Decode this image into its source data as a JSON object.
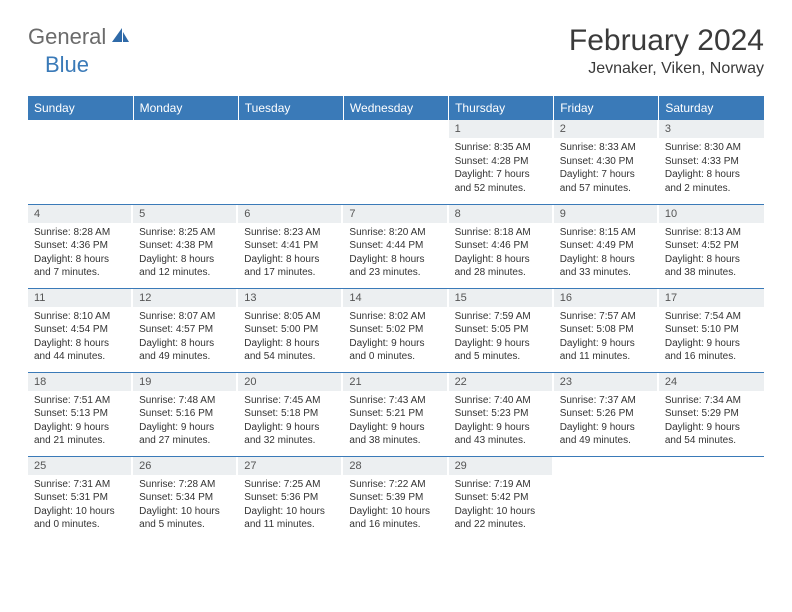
{
  "logo": {
    "general": "General",
    "blue": "Blue"
  },
  "title": "February 2024",
  "location": "Jevnaker, Viken, Norway",
  "colors": {
    "header_bg": "#3a7ab8",
    "header_text": "#ffffff",
    "daynum_bg": "#eceff1",
    "border": "#3a7ab8",
    "logo_gray": "#6b6b6b",
    "logo_blue": "#3a7ab8"
  },
  "weekdays": [
    "Sunday",
    "Monday",
    "Tuesday",
    "Wednesday",
    "Thursday",
    "Friday",
    "Saturday"
  ],
  "weeks": [
    [
      null,
      null,
      null,
      null,
      {
        "n": "1",
        "sr": "Sunrise: 8:35 AM",
        "ss": "Sunset: 4:28 PM",
        "dl": "Daylight: 7 hours and 52 minutes."
      },
      {
        "n": "2",
        "sr": "Sunrise: 8:33 AM",
        "ss": "Sunset: 4:30 PM",
        "dl": "Daylight: 7 hours and 57 minutes."
      },
      {
        "n": "3",
        "sr": "Sunrise: 8:30 AM",
        "ss": "Sunset: 4:33 PM",
        "dl": "Daylight: 8 hours and 2 minutes."
      }
    ],
    [
      {
        "n": "4",
        "sr": "Sunrise: 8:28 AM",
        "ss": "Sunset: 4:36 PM",
        "dl": "Daylight: 8 hours and 7 minutes."
      },
      {
        "n": "5",
        "sr": "Sunrise: 8:25 AM",
        "ss": "Sunset: 4:38 PM",
        "dl": "Daylight: 8 hours and 12 minutes."
      },
      {
        "n": "6",
        "sr": "Sunrise: 8:23 AM",
        "ss": "Sunset: 4:41 PM",
        "dl": "Daylight: 8 hours and 17 minutes."
      },
      {
        "n": "7",
        "sr": "Sunrise: 8:20 AM",
        "ss": "Sunset: 4:44 PM",
        "dl": "Daylight: 8 hours and 23 minutes."
      },
      {
        "n": "8",
        "sr": "Sunrise: 8:18 AM",
        "ss": "Sunset: 4:46 PM",
        "dl": "Daylight: 8 hours and 28 minutes."
      },
      {
        "n": "9",
        "sr": "Sunrise: 8:15 AM",
        "ss": "Sunset: 4:49 PM",
        "dl": "Daylight: 8 hours and 33 minutes."
      },
      {
        "n": "10",
        "sr": "Sunrise: 8:13 AM",
        "ss": "Sunset: 4:52 PM",
        "dl": "Daylight: 8 hours and 38 minutes."
      }
    ],
    [
      {
        "n": "11",
        "sr": "Sunrise: 8:10 AM",
        "ss": "Sunset: 4:54 PM",
        "dl": "Daylight: 8 hours and 44 minutes."
      },
      {
        "n": "12",
        "sr": "Sunrise: 8:07 AM",
        "ss": "Sunset: 4:57 PM",
        "dl": "Daylight: 8 hours and 49 minutes."
      },
      {
        "n": "13",
        "sr": "Sunrise: 8:05 AM",
        "ss": "Sunset: 5:00 PM",
        "dl": "Daylight: 8 hours and 54 minutes."
      },
      {
        "n": "14",
        "sr": "Sunrise: 8:02 AM",
        "ss": "Sunset: 5:02 PM",
        "dl": "Daylight: 9 hours and 0 minutes."
      },
      {
        "n": "15",
        "sr": "Sunrise: 7:59 AM",
        "ss": "Sunset: 5:05 PM",
        "dl": "Daylight: 9 hours and 5 minutes."
      },
      {
        "n": "16",
        "sr": "Sunrise: 7:57 AM",
        "ss": "Sunset: 5:08 PM",
        "dl": "Daylight: 9 hours and 11 minutes."
      },
      {
        "n": "17",
        "sr": "Sunrise: 7:54 AM",
        "ss": "Sunset: 5:10 PM",
        "dl": "Daylight: 9 hours and 16 minutes."
      }
    ],
    [
      {
        "n": "18",
        "sr": "Sunrise: 7:51 AM",
        "ss": "Sunset: 5:13 PM",
        "dl": "Daylight: 9 hours and 21 minutes."
      },
      {
        "n": "19",
        "sr": "Sunrise: 7:48 AM",
        "ss": "Sunset: 5:16 PM",
        "dl": "Daylight: 9 hours and 27 minutes."
      },
      {
        "n": "20",
        "sr": "Sunrise: 7:45 AM",
        "ss": "Sunset: 5:18 PM",
        "dl": "Daylight: 9 hours and 32 minutes."
      },
      {
        "n": "21",
        "sr": "Sunrise: 7:43 AM",
        "ss": "Sunset: 5:21 PM",
        "dl": "Daylight: 9 hours and 38 minutes."
      },
      {
        "n": "22",
        "sr": "Sunrise: 7:40 AM",
        "ss": "Sunset: 5:23 PM",
        "dl": "Daylight: 9 hours and 43 minutes."
      },
      {
        "n": "23",
        "sr": "Sunrise: 7:37 AM",
        "ss": "Sunset: 5:26 PM",
        "dl": "Daylight: 9 hours and 49 minutes."
      },
      {
        "n": "24",
        "sr": "Sunrise: 7:34 AM",
        "ss": "Sunset: 5:29 PM",
        "dl": "Daylight: 9 hours and 54 minutes."
      }
    ],
    [
      {
        "n": "25",
        "sr": "Sunrise: 7:31 AM",
        "ss": "Sunset: 5:31 PM",
        "dl": "Daylight: 10 hours and 0 minutes."
      },
      {
        "n": "26",
        "sr": "Sunrise: 7:28 AM",
        "ss": "Sunset: 5:34 PM",
        "dl": "Daylight: 10 hours and 5 minutes."
      },
      {
        "n": "27",
        "sr": "Sunrise: 7:25 AM",
        "ss": "Sunset: 5:36 PM",
        "dl": "Daylight: 10 hours and 11 minutes."
      },
      {
        "n": "28",
        "sr": "Sunrise: 7:22 AM",
        "ss": "Sunset: 5:39 PM",
        "dl": "Daylight: 10 hours and 16 minutes."
      },
      {
        "n": "29",
        "sr": "Sunrise: 7:19 AM",
        "ss": "Sunset: 5:42 PM",
        "dl": "Daylight: 10 hours and 22 minutes."
      },
      null,
      null
    ]
  ]
}
